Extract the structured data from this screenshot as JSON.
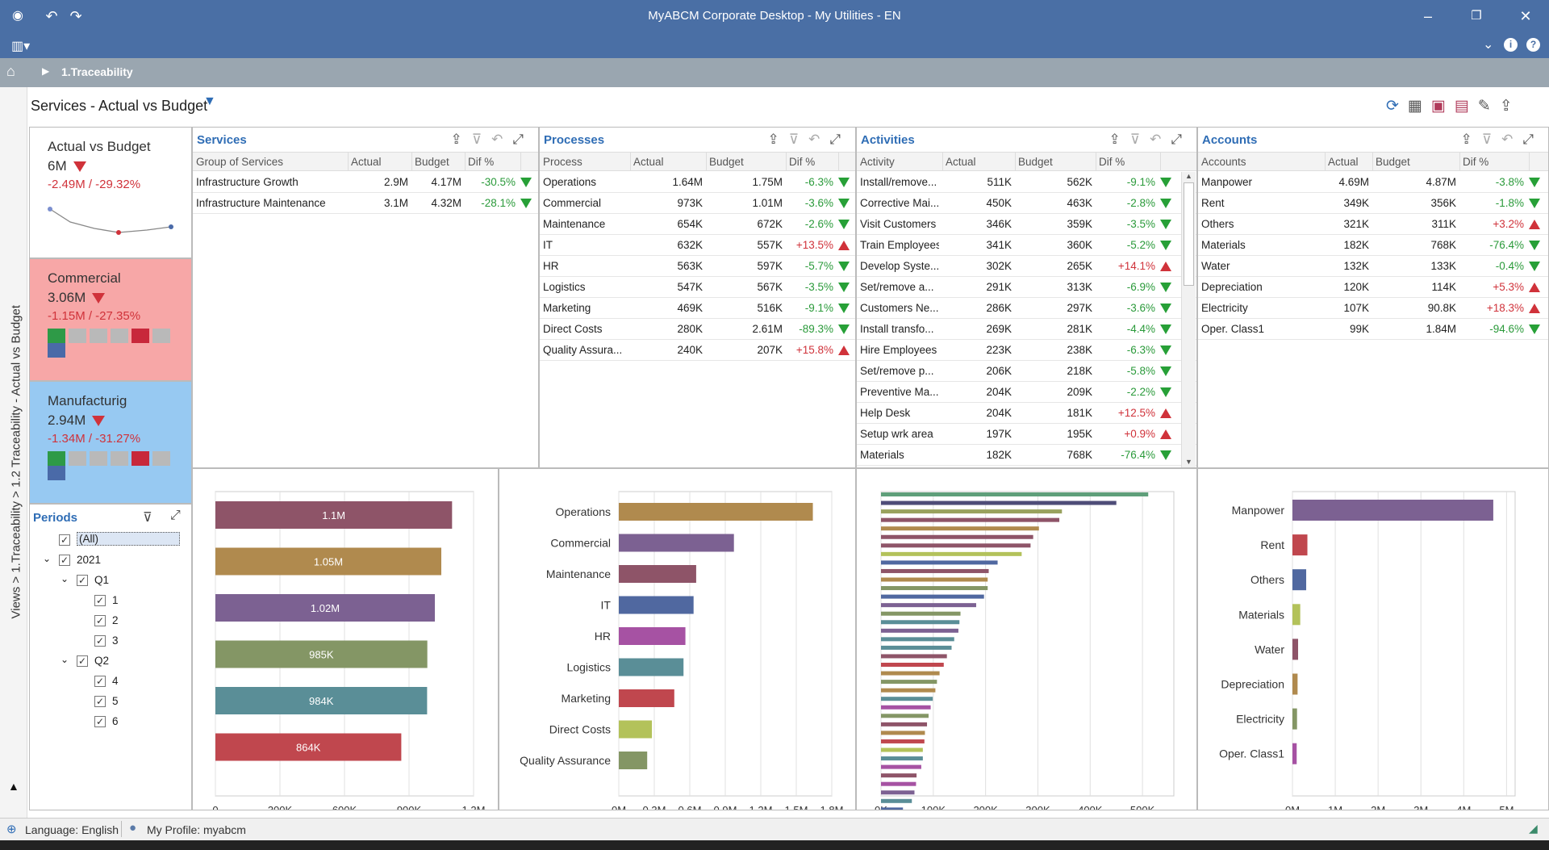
{
  "app": {
    "title": "MyABCM Corporate Desktop - My Utilities - EN"
  },
  "breadcrumb": {
    "label": "1.Traceability"
  },
  "side_path": "Views > 1.Traceability > 1.2 Traceability - Actual vs Budget",
  "page": {
    "title": "Services - Actual vs Budget"
  },
  "kpis": [
    {
      "title": "Actual vs Budget",
      "value": "6M",
      "delta": "-2.49M  /  -29.32%",
      "bg": "#ffffff"
    },
    {
      "title": "Commercial",
      "value": "3.06M",
      "delta": "-1.15M  /  -27.35%",
      "bg": "#f7a7a7",
      "spark": [
        "#2e9a47",
        "#b9b9b9",
        "#b9b9b9",
        "#b9b9b9",
        "#c8283b",
        "#b9b9b9",
        "#4a6aa8"
      ]
    },
    {
      "title": "Manufacturig",
      "value": "2.94M",
      "delta": "-1.34M  /  -31.27%",
      "bg": "#97c9f2",
      "spark": [
        "#2e9a47",
        "#b9b9b9",
        "#b9b9b9",
        "#b9b9b9",
        "#c8283b",
        "#b9b9b9",
        "#4a6aa8"
      ]
    }
  ],
  "periods": {
    "title": "Periods",
    "items": [
      {
        "label": "(All)",
        "level": 0
      },
      {
        "label": "2021",
        "level": 1
      },
      {
        "label": "Q1",
        "level": 2
      },
      {
        "label": "1",
        "level": 3
      },
      {
        "label": "2",
        "level": 3
      },
      {
        "label": "3",
        "level": 3
      },
      {
        "label": "Q2",
        "level": 2
      },
      {
        "label": "4",
        "level": 3
      },
      {
        "label": "5",
        "level": 3
      },
      {
        "label": "6",
        "level": 3
      }
    ]
  },
  "tables": {
    "services": {
      "title": "Services",
      "columns": [
        "Group of Services",
        "Actual",
        "Budget",
        "Dif %"
      ],
      "rows": [
        [
          "Infrastructure Growth",
          "2.9M",
          "4.17M",
          "-30.5%",
          "down"
        ],
        [
          "Infrastructure Maintenance",
          "3.1M",
          "4.32M",
          "-28.1%",
          "down"
        ]
      ]
    },
    "processes": {
      "title": "Processes",
      "columns": [
        "Process",
        "Actual",
        "Budget",
        "Dif %"
      ],
      "rows": [
        [
          "Operations",
          "1.64M",
          "1.75M",
          "-6.3%",
          "down"
        ],
        [
          "Commercial",
          "973K",
          "1.01M",
          "-3.6%",
          "down"
        ],
        [
          "Maintenance",
          "654K",
          "672K",
          "-2.6%",
          "down"
        ],
        [
          "IT",
          "632K",
          "557K",
          "+13.5%",
          "up"
        ],
        [
          "HR",
          "563K",
          "597K",
          "-5.7%",
          "down"
        ],
        [
          "Logistics",
          "547K",
          "567K",
          "-3.5%",
          "down"
        ],
        [
          "Marketing",
          "469K",
          "516K",
          "-9.1%",
          "down"
        ],
        [
          "Direct Costs",
          "280K",
          "2.61M",
          "-89.3%",
          "down"
        ],
        [
          "Quality Assura...",
          "240K",
          "207K",
          "+15.8%",
          "up"
        ]
      ]
    },
    "activities": {
      "title": "Activities",
      "columns": [
        "Activity",
        "Actual",
        "Budget",
        "Dif %"
      ],
      "rows": [
        [
          "Install/remove...",
          "511K",
          "562K",
          "-9.1%",
          "down"
        ],
        [
          "Corrective Mai...",
          "450K",
          "463K",
          "-2.8%",
          "down"
        ],
        [
          "Visit Customers",
          "346K",
          "359K",
          "-3.5%",
          "down"
        ],
        [
          "Train Employees",
          "341K",
          "360K",
          "-5.2%",
          "down"
        ],
        [
          "Develop Syste...",
          "302K",
          "265K",
          "+14.1%",
          "up"
        ],
        [
          "Set/remove a...",
          "291K",
          "313K",
          "-6.9%",
          "down"
        ],
        [
          "Customers Ne...",
          "286K",
          "297K",
          "-3.6%",
          "down"
        ],
        [
          "Install transfo...",
          "269K",
          "281K",
          "-4.4%",
          "down"
        ],
        [
          "Hire Employees",
          "223K",
          "238K",
          "-6.3%",
          "down"
        ],
        [
          "Set/remove p...",
          "206K",
          "218K",
          "-5.8%",
          "down"
        ],
        [
          "Preventive Ma...",
          "204K",
          "209K",
          "-2.2%",
          "down"
        ],
        [
          "Help Desk",
          "204K",
          "181K",
          "+12.5%",
          "up"
        ],
        [
          "Setup wrk area",
          "197K",
          "195K",
          "+0.9%",
          "up"
        ],
        [
          "Materials",
          "182K",
          "768K",
          "-76.4%",
          "down"
        ]
      ]
    },
    "accounts": {
      "title": "Accounts",
      "columns": [
        "Accounts",
        "Actual",
        "Budget",
        "Dif %"
      ],
      "rows": [
        [
          "Manpower",
          "4.69M",
          "4.87M",
          "-3.8%",
          "down"
        ],
        [
          "Rent",
          "349K",
          "356K",
          "-1.8%",
          "down"
        ],
        [
          "Others",
          "321K",
          "311K",
          "+3.2%",
          "up"
        ],
        [
          "Materials",
          "182K",
          "768K",
          "-76.4%",
          "down"
        ],
        [
          "Water",
          "132K",
          "133K",
          "-0.4%",
          "down"
        ],
        [
          "Depreciation",
          "120K",
          "114K",
          "+5.3%",
          "up"
        ],
        [
          "Electricity",
          "107K",
          "90.8K",
          "+18.3%",
          "up"
        ],
        [
          "Oper. Class1",
          "99K",
          "1.84M",
          "-94.6%",
          "down"
        ]
      ]
    }
  },
  "status": {
    "language": "Language: English",
    "profile": "My Profile: myabcm"
  },
  "chart_data": [
    {
      "type": "bar",
      "orientation": "horizontal",
      "categories": [
        "",
        "",
        "",
        "",
        "",
        ""
      ],
      "values": [
        1100000,
        1050000,
        1020000,
        985000,
        984000,
        864000
      ],
      "labels": [
        "1.1M",
        "1.05M",
        "1.02M",
        "985K",
        "984K",
        "864K"
      ],
      "colors": [
        "#8e5468",
        "#b08a4e",
        "#7c6192",
        "#849665",
        "#5a8e97",
        "#c0474e"
      ],
      "xticks": [
        "0",
        "300K",
        "600K",
        "900K",
        "1.2M"
      ],
      "xlim": [
        0,
        1200000
      ]
    },
    {
      "type": "bar",
      "orientation": "horizontal",
      "categories": [
        "Operations",
        "Commercial",
        "Maintenance",
        "IT",
        "HR",
        "Logistics",
        "Marketing",
        "Direct Costs",
        "Quality Assurance"
      ],
      "values": [
        1640000,
        973000,
        654000,
        632000,
        563000,
        547000,
        469000,
        280000,
        240000
      ],
      "colors": [
        "#b08a4e",
        "#7c6192",
        "#8e5468",
        "#5068a0",
        "#a652a3",
        "#5a8e97",
        "#c0474e",
        "#b3c25a",
        "#849665"
      ],
      "xticks": [
        "0M",
        "0.3M",
        "0.6M",
        "0.9M",
        "1.2M",
        "1.5M",
        "1.8M"
      ],
      "xlim": [
        0,
        1800000
      ]
    },
    {
      "type": "bar",
      "orientation": "horizontal",
      "values": [
        511000,
        450000,
        346000,
        341000,
        302000,
        291000,
        286000,
        269000,
        223000,
        206000,
        204000,
        204000,
        197000,
        182000,
        152000,
        150000,
        148000,
        140000,
        135000,
        126000,
        120000,
        112000,
        107000,
        104000,
        99000,
        95000,
        91000,
        88000,
        84000,
        83000,
        80000,
        80000,
        77000,
        68000,
        67000,
        64000,
        59000,
        42000
      ],
      "colors": [
        "#5f9f7a",
        "#4f4d78",
        "#99a25e",
        "#8e5468",
        "#b08a4e",
        "#8e5468",
        "#8e5468",
        "#b3c25a",
        "#5068a0",
        "#8e5468",
        "#b08a4e",
        "#849665",
        "#5068a0",
        "#7c6192",
        "#849665",
        "#5a8e97",
        "#7c6192",
        "#5a8e97",
        "#5a8e97",
        "#8e5468",
        "#c0474e",
        "#b08a4e",
        "#849665",
        "#b08a4e",
        "#5a8e97",
        "#a652a3",
        "#849665",
        "#8e5468",
        "#b08a4e",
        "#c0474e",
        "#b3c25a",
        "#5a8e97",
        "#a652a3",
        "#8e5468",
        "#a652a3",
        "#7c6192",
        "#5a8e97",
        "#5068a0"
      ],
      "xticks": [
        "0K",
        "100K",
        "200K",
        "300K",
        "400K",
        "500K"
      ],
      "xlim": [
        0,
        560000
      ]
    },
    {
      "type": "bar",
      "orientation": "horizontal",
      "categories": [
        "Manpower",
        "Rent",
        "Others",
        "Materials",
        "Water",
        "Depreciation",
        "Electricity",
        "Oper. Class1"
      ],
      "values": [
        4690000,
        349000,
        321000,
        182000,
        132000,
        120000,
        107000,
        99000
      ],
      "colors": [
        "#7c6192",
        "#c0474e",
        "#5068a0",
        "#b3c25a",
        "#8e5468",
        "#b08a4e",
        "#849665",
        "#a652a3"
      ],
      "xticks": [
        "0M",
        "1M",
        "2M",
        "3M",
        "4M",
        "5M"
      ],
      "xlim": [
        0,
        5200000
      ]
    }
  ]
}
